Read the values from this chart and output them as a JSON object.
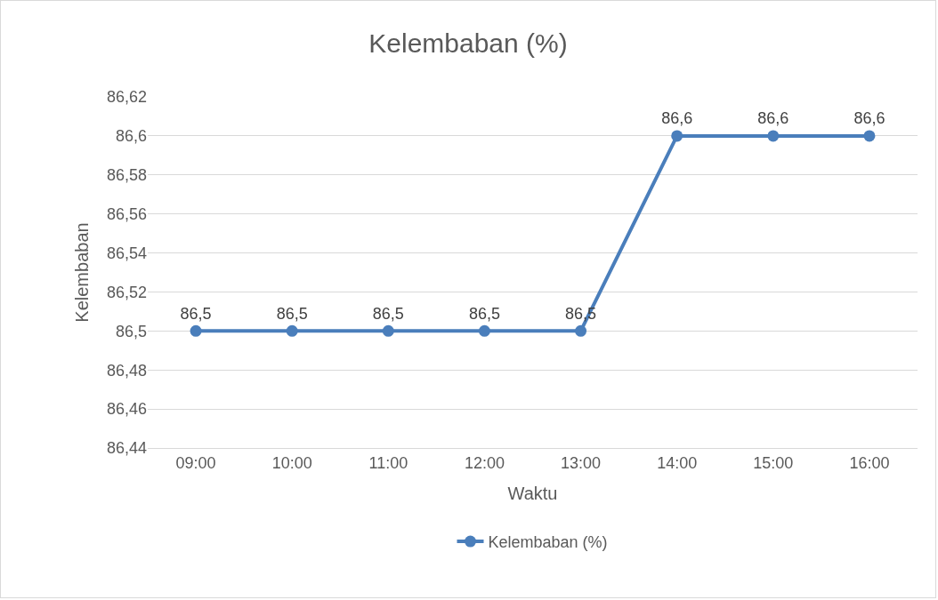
{
  "chart_data": {
    "type": "line",
    "title": "Kelembaban (%)",
    "xlabel": "Waktu",
    "ylabel": "Kelembaban",
    "categories": [
      "09:00",
      "10:00",
      "11:00",
      "12:00",
      "13:00",
      "14:00",
      "15:00",
      "16:00"
    ],
    "series": [
      {
        "name": "Kelembaban (%)",
        "color": "#4a7ebb",
        "values": [
          86.5,
          86.5,
          86.5,
          86.5,
          86.5,
          86.6,
          86.6,
          86.6
        ],
        "value_labels": [
          "86,5",
          "86,5",
          "86,5",
          "86,5",
          "86,5",
          "86,6",
          "86,6",
          "86,6"
        ]
      }
    ],
    "ylim": [
      86.44,
      86.62
    ],
    "yticks": [
      {
        "value": 86.44,
        "label": "86,44"
      },
      {
        "value": 86.46,
        "label": "86,46"
      },
      {
        "value": 86.48,
        "label": "86,48"
      },
      {
        "value": 86.5,
        "label": "86,5"
      },
      {
        "value": 86.52,
        "label": "86,52"
      },
      {
        "value": 86.54,
        "label": "86,54"
      },
      {
        "value": 86.56,
        "label": "86,56"
      },
      {
        "value": 86.58,
        "label": "86,58"
      },
      {
        "value": 86.6,
        "label": "86,6"
      },
      {
        "value": 86.62,
        "label": "86,62"
      }
    ],
    "grid": "y",
    "legend": "bottom",
    "marker": "circle",
    "line_style": "solid"
  }
}
